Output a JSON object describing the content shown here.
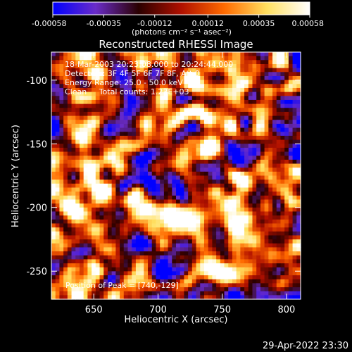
{
  "chart_data": {
    "type": "heatmap",
    "title": "Reconstructed RHESSI Image",
    "xlabel": "Heliocentric X (arcsec)",
    "ylabel": "Heliocentric Y (arcsec)",
    "xlim": [
      617,
      811
    ],
    "ylim": [
      -272,
      -78
    ],
    "x_ticks": [
      650,
      700,
      750,
      800
    ],
    "x_tick_labels": [
      "650",
      "700",
      "750",
      "800"
    ],
    "y_ticks": [
      -100,
      -150,
      -200,
      -250
    ],
    "y_tick_labels": [
      "-100",
      "-150",
      "-200",
      "-250"
    ],
    "colorbar": {
      "range": [
        -0.00058,
        0.00058
      ],
      "ticks": [
        -0.00058,
        -0.00035,
        -0.00012,
        0.00012,
        0.00035,
        0.00058
      ],
      "tick_labels": [
        "-0.00058",
        "-0.00035",
        "-0.00012",
        "0.00012",
        "0.00035",
        "0.00058"
      ],
      "unit_label": "(photons cm⁻² s⁻¹ asec⁻²)",
      "colors": [
        "#0000ff",
        "#6a2cc8",
        "#2a0000",
        "#b01000",
        "#ff6a00",
        "#ffe060",
        "#ffffff"
      ]
    },
    "annotations": [
      "18-Mar-2003 20:23:08.000 to 20:24:44.000",
      "Detectors: 3F 4F 5F 6F 7F 8F, Att 0",
      "Energy Range: 25.0 - 50.0 keV",
      "Clean     Total counts: 1.23E+03",
      "Position of Peak = [740,-129]"
    ],
    "peak": {
      "x": 740,
      "y": -129
    },
    "grid_nx": 62,
    "grid_ny": 62
  },
  "footer": {
    "timestamp": "29-Apr-2022 23:30"
  }
}
